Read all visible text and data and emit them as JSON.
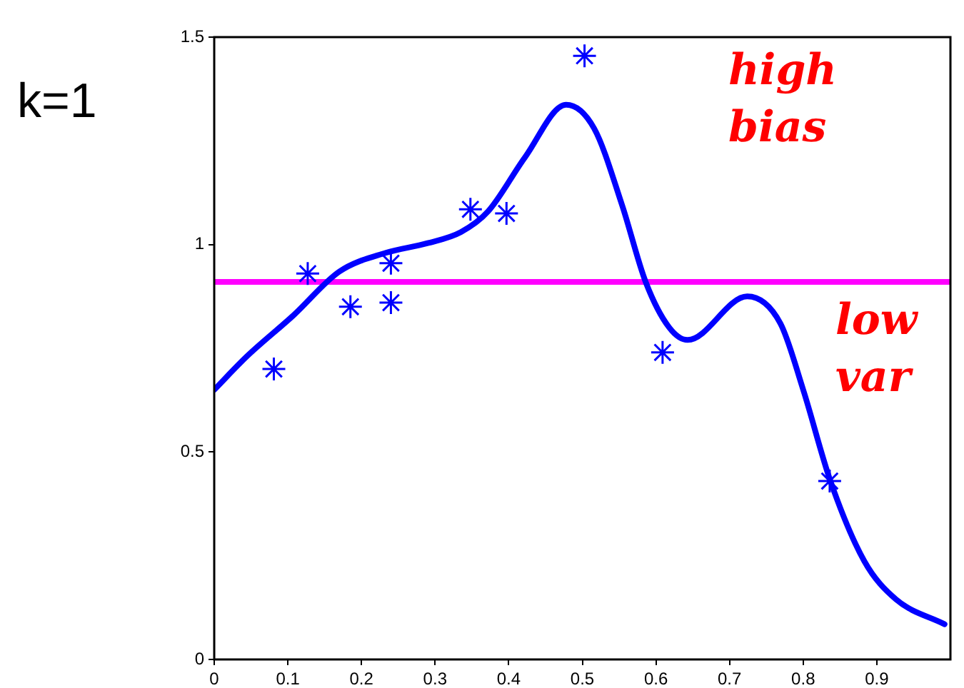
{
  "chart_data": {
    "type": "scatter",
    "title": "k=1",
    "xlim": [
      0,
      1
    ],
    "xticks": [
      0,
      0.1,
      0.2,
      0.3,
      0.4,
      0.5,
      0.6,
      0.7,
      0.8,
      0.9
    ],
    "ylim": [
      0,
      1.5
    ],
    "yticks": [
      0,
      0.5,
      1,
      1.5
    ],
    "series": [
      {
        "color": "#0000ff",
        "marker": "cross",
        "x": [
          0.081,
          0.127,
          0.185,
          0.24,
          0.24,
          0.348,
          0.397,
          0.503,
          0.609,
          0.836
        ],
        "values": [
          0.7,
          0.93,
          0.85,
          0.955,
          0.86,
          1.085,
          1.075,
          1.455,
          0.74,
          0.43
        ]
      },
      {
        "type": "line",
        "color": "#0000ff",
        "marker": "none",
        "x": [
          0,
          0.044,
          0.108,
          0.17,
          0.233,
          0.289,
          0.335,
          0.372,
          0.422,
          0.478,
          0.516,
          0.554,
          0.586,
          0.618,
          0.643,
          0.724,
          0.769,
          0.8,
          0.837,
          0.883,
          0.926,
          0.992
        ],
        "values": [
          0.65,
          0.73,
          0.83,
          0.935,
          0.98,
          1.003,
          1.03,
          1.08,
          1.21,
          1.337,
          1.28,
          1.095,
          0.91,
          0.8,
          0.77,
          0.875,
          0.81,
          0.65,
          0.43,
          0.237,
          0.145,
          0.085
        ]
      }
    ],
    "ref_lines": [
      {
        "axis": "y",
        "value": 0.91,
        "color": "#ff00ff"
      }
    ],
    "annotations": [
      "high bias",
      "low var"
    ]
  }
}
